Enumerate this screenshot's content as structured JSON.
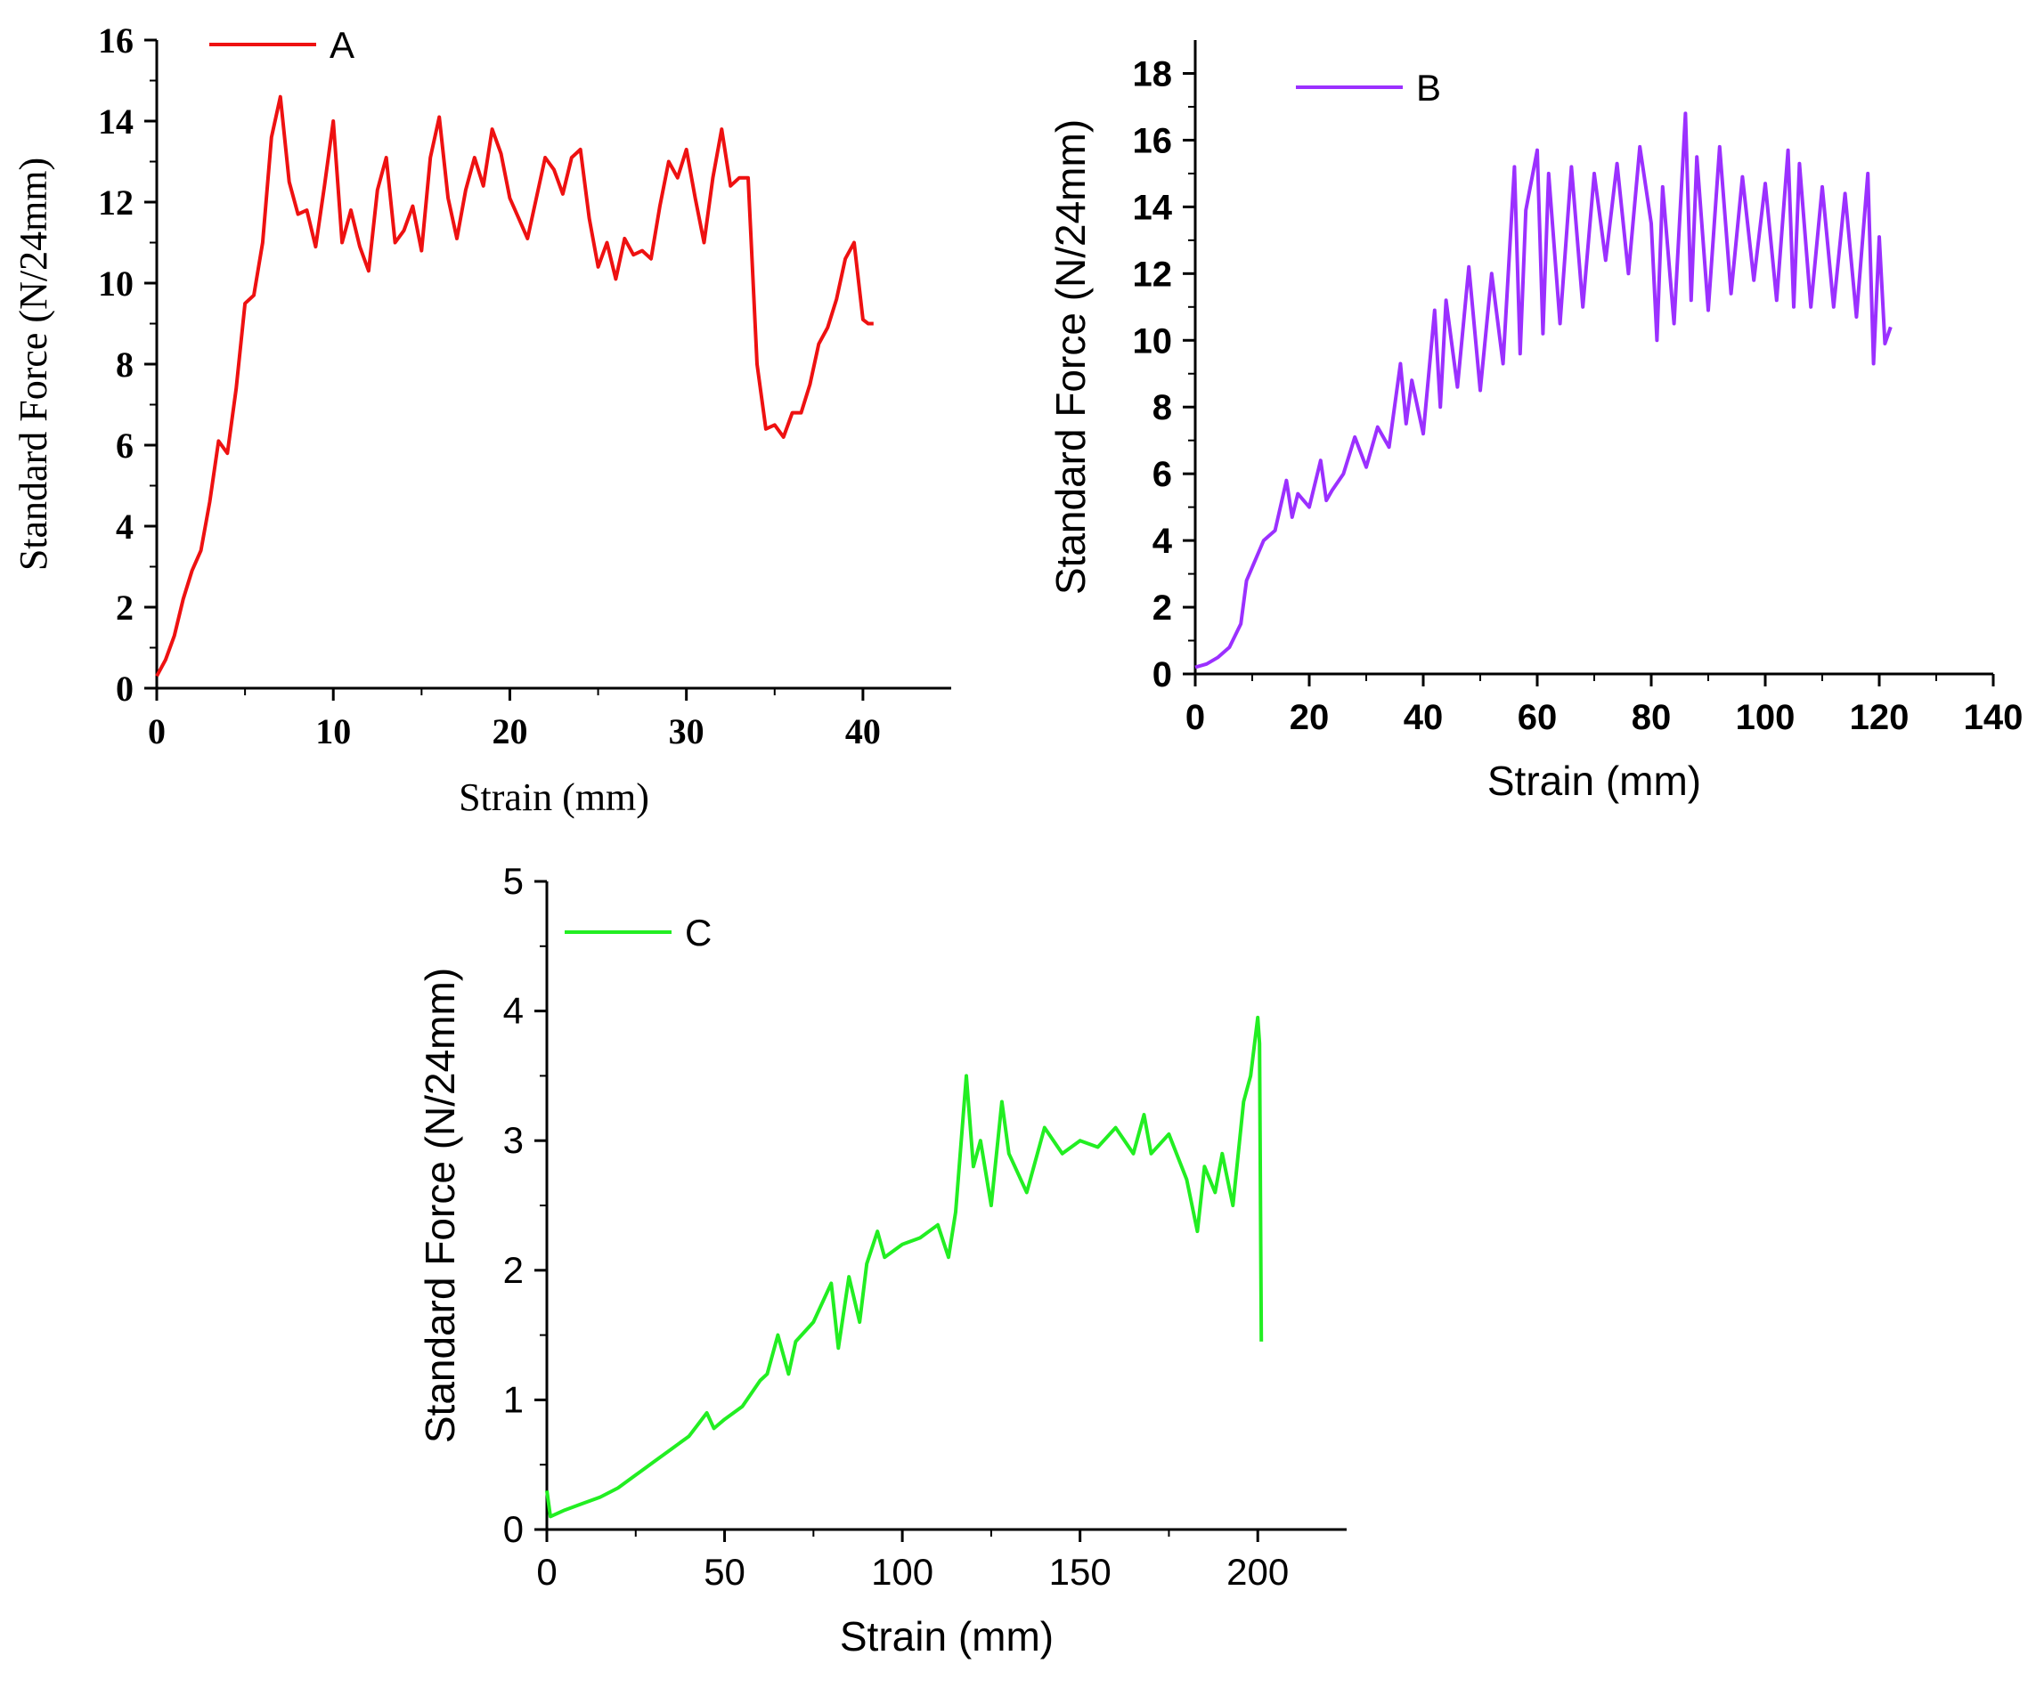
{
  "chart_data": [
    {
      "id": "A",
      "type": "line",
      "title": "",
      "xlabel": "Strain (mm)",
      "ylabel": "Standard Force (N/24mm)",
      "xlim": [
        0,
        45
      ],
      "ylim": [
        0,
        16
      ],
      "xticks": [
        0,
        10,
        20,
        30,
        40
      ],
      "yticks": [
        0,
        2,
        4,
        6,
        8,
        10,
        12,
        14,
        16
      ],
      "legend": {
        "label": "A",
        "position": "top-left"
      },
      "series": [
        {
          "name": "A",
          "color": "#ee1111",
          "x": [
            0,
            0.5,
            1.0,
            1.5,
            2.0,
            2.5,
            3.0,
            3.5,
            4.0,
            4.5,
            5.0,
            5.5,
            6.0,
            6.5,
            7.0,
            7.5,
            8.0,
            8.5,
            9.0,
            9.5,
            10.0,
            10.5,
            11.0,
            11.5,
            12.0,
            12.5,
            13.0,
            13.5,
            14.0,
            14.5,
            15.0,
            15.5,
            16.0,
            16.5,
            17.0,
            17.5,
            18.0,
            18.5,
            19.0,
            19.5,
            20.0,
            20.5,
            21.0,
            21.5,
            22.0,
            22.5,
            23.0,
            23.5,
            24.0,
            24.5,
            25.0,
            25.5,
            26.0,
            26.5,
            27.0,
            27.5,
            28.0,
            28.5,
            29.0,
            29.5,
            30.0,
            30.5,
            31.0,
            31.5,
            32.0,
            32.5,
            33.0,
            33.5,
            34.0,
            34.5,
            35.0,
            35.5,
            36.0,
            36.5,
            37.0,
            37.5,
            38.0,
            38.5,
            39.0,
            39.5,
            40.0,
            40.3,
            40.6
          ],
          "values": [
            0.3,
            0.7,
            1.3,
            2.2,
            2.9,
            3.4,
            4.6,
            6.1,
            5.8,
            7.4,
            9.5,
            9.7,
            11.0,
            13.6,
            14.6,
            12.5,
            11.7,
            11.8,
            10.9,
            12.4,
            14.0,
            11.0,
            11.8,
            10.9,
            10.3,
            12.3,
            13.1,
            11.0,
            11.3,
            11.9,
            10.8,
            13.1,
            14.1,
            12.1,
            11.1,
            12.3,
            13.1,
            12.4,
            13.8,
            13.2,
            12.1,
            11.6,
            11.1,
            12.1,
            13.1,
            12.8,
            12.2,
            13.1,
            13.3,
            11.6,
            10.4,
            11.0,
            10.1,
            11.1,
            10.7,
            10.8,
            10.6,
            11.9,
            13.0,
            12.6,
            13.3,
            12.1,
            11.0,
            12.6,
            13.8,
            12.4,
            12.6,
            12.6,
            8.0,
            6.4,
            6.5,
            6.2,
            6.8,
            6.8,
            7.5,
            8.5,
            8.9,
            9.6,
            10.6,
            11.0,
            9.1,
            9.0,
            9.0
          ]
        }
      ]
    },
    {
      "id": "B",
      "type": "line",
      "title": "",
      "xlabel": "Strain (mm)",
      "ylabel": "Standard Force (N/24mm)",
      "xlim": [
        0,
        140
      ],
      "ylim": [
        0,
        19
      ],
      "xticks": [
        0,
        20,
        40,
        60,
        80,
        100,
        120,
        140
      ],
      "yticks": [
        0,
        2,
        4,
        6,
        8,
        10,
        12,
        14,
        16,
        18
      ],
      "legend": {
        "label": "B",
        "position": "top-left"
      },
      "series": [
        {
          "name": "B",
          "color": "#9b30ff",
          "x": [
            0,
            2,
            4,
            6,
            8,
            9,
            10,
            12,
            14,
            16,
            17,
            18,
            20,
            22,
            23,
            24,
            26,
            28,
            30,
            32,
            34,
            36,
            37,
            38,
            40,
            42,
            43,
            44,
            46,
            48,
            50,
            52,
            54,
            56,
            57,
            58,
            60,
            61,
            62,
            64,
            66,
            68,
            70,
            72,
            74,
            76,
            78,
            80,
            81,
            82,
            84,
            86,
            87,
            88,
            90,
            92,
            94,
            96,
            98,
            100,
            102,
            104,
            105,
            106,
            108,
            110,
            112,
            114,
            116,
            118,
            119,
            120,
            121,
            122
          ],
          "values": [
            0.2,
            0.3,
            0.5,
            0.8,
            1.5,
            2.8,
            3.2,
            4.0,
            4.3,
            5.8,
            4.7,
            5.4,
            5.0,
            6.4,
            5.2,
            5.5,
            6.0,
            7.1,
            6.2,
            7.4,
            6.8,
            9.3,
            7.5,
            8.8,
            7.2,
            10.9,
            8.0,
            11.2,
            8.6,
            12.2,
            8.5,
            12.0,
            9.3,
            15.2,
            9.6,
            13.9,
            15.7,
            10.2,
            15.0,
            10.5,
            15.2,
            11.0,
            15.0,
            12.4,
            15.3,
            12.0,
            15.8,
            13.5,
            10.0,
            14.6,
            10.5,
            16.8,
            11.2,
            15.5,
            10.9,
            15.8,
            11.4,
            14.9,
            11.8,
            14.7,
            11.2,
            15.7,
            11.0,
            15.3,
            11.0,
            14.6,
            11.0,
            14.4,
            10.7,
            15.0,
            9.3,
            13.1,
            9.9,
            10.4
          ]
        }
      ]
    },
    {
      "id": "C",
      "type": "line",
      "title": "",
      "xlabel": "Strain (mm)",
      "ylabel": "Standard Force (N/24mm)",
      "xlim": [
        0,
        225
      ],
      "ylim": [
        0,
        5
      ],
      "xticks": [
        0,
        50,
        100,
        150,
        200
      ],
      "yticks": [
        0,
        1,
        2,
        3,
        4,
        5
      ],
      "legend": {
        "label": "C",
        "position": "top-left"
      },
      "series": [
        {
          "name": "C",
          "color": "#22ee22",
          "x": [
            0,
            1,
            5,
            10,
            15,
            20,
            25,
            30,
            35,
            40,
            45,
            47,
            50,
            55,
            60,
            62,
            65,
            68,
            70,
            75,
            80,
            82,
            85,
            88,
            90,
            93,
            95,
            100,
            105,
            110,
            113,
            115,
            118,
            120,
            122,
            125,
            128,
            130,
            135,
            140,
            145,
            150,
            155,
            160,
            165,
            168,
            170,
            175,
            180,
            183,
            185,
            188,
            190,
            193,
            196,
            198,
            200,
            200.5,
            201
          ],
          "values": [
            0.3,
            0.1,
            0.15,
            0.2,
            0.25,
            0.32,
            0.42,
            0.52,
            0.62,
            0.72,
            0.9,
            0.78,
            0.85,
            0.95,
            1.15,
            1.2,
            1.5,
            1.2,
            1.45,
            1.6,
            1.9,
            1.4,
            1.95,
            1.6,
            2.05,
            2.3,
            2.1,
            2.2,
            2.25,
            2.35,
            2.1,
            2.45,
            3.5,
            2.8,
            3.0,
            2.5,
            3.3,
            2.9,
            2.6,
            3.1,
            2.9,
            3.0,
            2.95,
            3.1,
            2.9,
            3.2,
            2.9,
            3.05,
            2.7,
            2.3,
            2.8,
            2.6,
            2.9,
            2.5,
            3.3,
            3.5,
            3.95,
            3.75,
            1.45
          ]
        }
      ]
    }
  ]
}
